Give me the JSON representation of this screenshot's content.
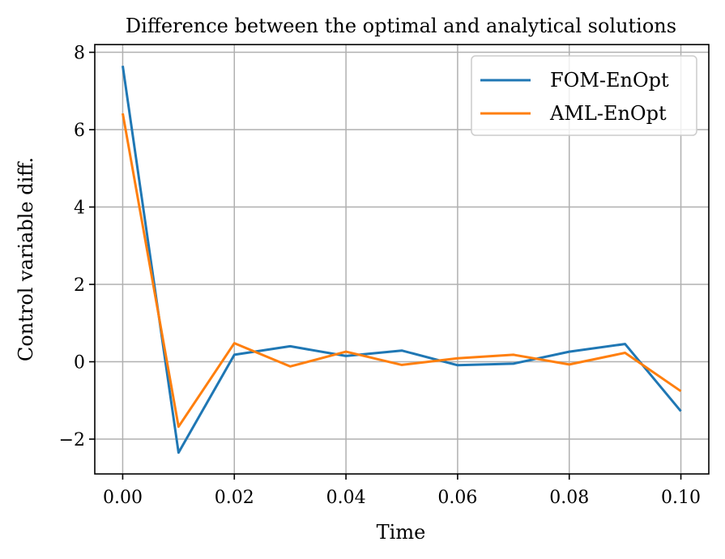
{
  "chart_data": {
    "type": "line",
    "title": "Difference between the optimal and analytical solutions",
    "xlabel": "Time",
    "ylabel": "Control variable diff.",
    "xlim": [
      -0.005,
      0.105
    ],
    "ylim": [
      -2.9,
      8.2
    ],
    "xticks": [
      0.0,
      0.02,
      0.04,
      0.06,
      0.08,
      0.1
    ],
    "xtick_labels": [
      "0.00",
      "0.02",
      "0.04",
      "0.06",
      "0.08",
      "0.10"
    ],
    "yticks": [
      -2,
      0,
      2,
      4,
      6,
      8
    ],
    "ytick_labels": [
      "−2",
      "0",
      "2",
      "4",
      "6",
      "8"
    ],
    "grid": true,
    "legend_position": "top-right",
    "x": [
      0.0,
      0.01,
      0.02,
      0.03,
      0.04,
      0.05,
      0.06,
      0.07,
      0.08,
      0.09,
      0.1
    ],
    "series": [
      {
        "name": "FOM-EnOpt",
        "color": "#1f77b4",
        "values": [
          7.65,
          -2.35,
          0.18,
          0.4,
          0.15,
          0.29,
          -0.09,
          -0.05,
          0.26,
          0.46,
          -1.28
        ]
      },
      {
        "name": "AML-EnOpt",
        "color": "#ff7f0e",
        "values": [
          6.42,
          -1.68,
          0.48,
          -0.12,
          0.26,
          -0.08,
          0.09,
          0.18,
          -0.07,
          0.23,
          -0.76
        ]
      }
    ]
  }
}
